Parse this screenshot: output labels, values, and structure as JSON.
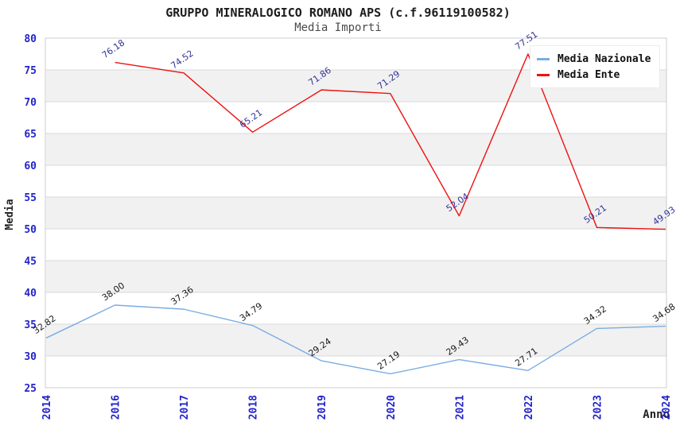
{
  "chart_data": {
    "type": "line",
    "title": "GRUPPO MINERALOGICO ROMANO APS (c.f.96119100582)",
    "subtitle": "Media Importi",
    "xlabel": "Anno",
    "ylabel": "Media",
    "ylim": [
      25,
      80
    ],
    "ytick_step": 5,
    "grid": true,
    "legend_position": "top-right",
    "categories": [
      "2014",
      "2016",
      "2017",
      "2018",
      "2019",
      "2020",
      "2021",
      "2022",
      "2023",
      "2024"
    ],
    "series": [
      {
        "name": "Media Nazionale",
        "color": "#7aade3",
        "label_color": "#1a1a1a",
        "values": [
          32.82,
          38.0,
          37.36,
          34.79,
          29.24,
          27.19,
          29.43,
          27.71,
          34.32,
          34.68
        ]
      },
      {
        "name": "Media Ente",
        "color": "#ee1111",
        "label_color": "#333399",
        "values": [
          null,
          76.18,
          74.52,
          65.21,
          71.86,
          71.29,
          52.04,
          77.51,
          50.21,
          49.93
        ]
      }
    ],
    "band_color": "#f1f1f1",
    "grid_color": "#dadada",
    "plot_border_color": "#cccccc",
    "tick_color": "#2323cd"
  }
}
